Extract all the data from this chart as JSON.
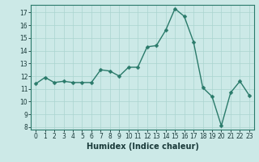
{
  "x": [
    0,
    1,
    2,
    3,
    4,
    5,
    6,
    7,
    8,
    9,
    10,
    11,
    12,
    13,
    14,
    15,
    16,
    17,
    18,
    19,
    20,
    21,
    22,
    23
  ],
  "y": [
    11.4,
    11.9,
    11.5,
    11.6,
    11.5,
    11.5,
    11.5,
    12.5,
    12.4,
    12.0,
    12.7,
    12.7,
    14.3,
    14.4,
    15.6,
    17.3,
    16.7,
    14.7,
    11.1,
    10.4,
    8.1,
    10.7,
    11.6,
    10.5
  ],
  "bg_color": "#cce9e7",
  "line_color": "#2a7a6a",
  "marker_color": "#2a7a6a",
  "grid_color": "#aad4d0",
  "xlabel": "Humidex (Indice chaleur)",
  "xlim": [
    -0.5,
    23.5
  ],
  "ylim": [
    7.8,
    17.6
  ],
  "yticks": [
    8,
    9,
    10,
    11,
    12,
    13,
    14,
    15,
    16,
    17
  ],
  "xticks": [
    0,
    1,
    2,
    3,
    4,
    5,
    6,
    7,
    8,
    9,
    10,
    11,
    12,
    13,
    14,
    15,
    16,
    17,
    18,
    19,
    20,
    21,
    22,
    23
  ],
  "tick_label_fontsize": 5.5,
  "xlabel_fontsize": 7.0,
  "line_width": 1.0,
  "marker_size": 2.5
}
